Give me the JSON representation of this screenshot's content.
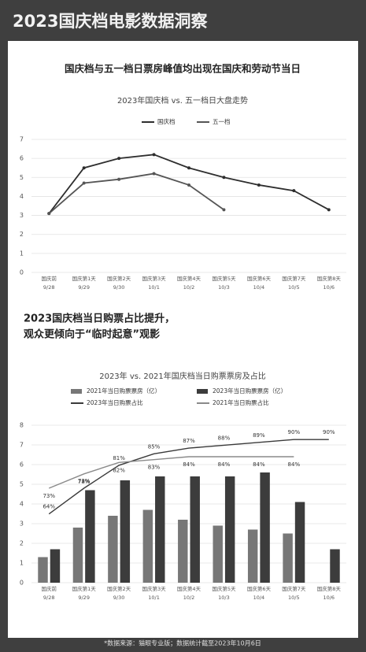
{
  "header": {
    "title": "2023国庆档电影数据洞察"
  },
  "footer": {
    "text": "*数据来源：猫眼专业版；数据统计截至2023年10月6日"
  },
  "chart_data": [
    {
      "type": "line",
      "heading": "国庆档与五一档日票房峰值均出现在国庆和劳动节当日",
      "title": "2023年国庆档 vs. 五一档日大盘走势",
      "categories": [
        [
          "国庆前",
          "9/28"
        ],
        [
          "国庆第1天",
          "9/29"
        ],
        [
          "国庆第2天",
          "9/30"
        ],
        [
          "国庆第3天",
          "10/1"
        ],
        [
          "国庆第4天",
          "10/2"
        ],
        [
          "国庆第5天",
          "10/3"
        ],
        [
          "国庆第6天",
          "10/4"
        ],
        [
          "国庆第7天",
          "10/5"
        ],
        [
          "国庆第8天",
          "10/6"
        ]
      ],
      "series": [
        {
          "name": "国庆档",
          "color": "#2e2e2e",
          "values": [
            3.1,
            5.5,
            6.0,
            6.2,
            5.5,
            5.0,
            4.6,
            4.3,
            3.3
          ]
        },
        {
          "name": "五一档",
          "color": "#555555",
          "values": [
            3.1,
            4.7,
            4.9,
            5.2,
            4.6,
            3.3,
            null,
            null,
            null
          ]
        }
      ],
      "ylim": [
        0,
        7
      ],
      "yticks": [
        0,
        1,
        2,
        3,
        4,
        5,
        6,
        7
      ],
      "grid": true
    },
    {
      "type": "combo",
      "heading": [
        "2023国庆档当日购票占比提升，",
        "观众更倾向于“临时起意”观影"
      ],
      "title": "2023年 vs. 2021年国庆档当日购票票房及占比",
      "categories": [
        [
          "国庆前",
          "9/28"
        ],
        [
          "国庆第1天",
          "9/29"
        ],
        [
          "国庆第2天",
          "9/30"
        ],
        [
          "国庆第3天",
          "10/1"
        ],
        [
          "国庆第4天",
          "10/2"
        ],
        [
          "国庆第5天",
          "10/3"
        ],
        [
          "国庆第6天",
          "10/4"
        ],
        [
          "国庆第7天",
          "10/5"
        ],
        [
          "国庆第8天",
          "10/6"
        ]
      ],
      "series": [
        {
          "name": "2021年当日购票票房（亿）",
          "type": "bar",
          "color": "#777777",
          "values": [
            1.3,
            2.8,
            3.4,
            3.7,
            3.2,
            2.9,
            2.7,
            2.5,
            null
          ]
        },
        {
          "name": "2023年当日购票票房（亿）",
          "type": "bar",
          "color": "#3c3c3c",
          "values": [
            1.7,
            4.7,
            5.2,
            5.4,
            5.4,
            5.4,
            5.6,
            4.1,
            1.7
          ]
        },
        {
          "name": "2023年当日购票占比",
          "type": "line",
          "axis": "y2",
          "color": "#3a3a3a",
          "values": [
            64,
            73,
            81,
            85,
            87,
            88,
            89,
            90,
            90
          ],
          "value_labels": [
            "64%",
            "73%",
            "81%",
            "85%",
            "87%",
            "88%",
            "89%",
            "90%",
            "90%"
          ]
        },
        {
          "name": "2021年当日购票占比",
          "type": "line",
          "axis": "y2",
          "color": "#8a8a8a",
          "values": [
            73,
            78,
            82,
            83,
            84,
            84,
            84,
            84,
            null
          ],
          "value_labels": [
            "73%",
            "78%",
            "82%",
            "83%",
            "84%",
            "84%",
            "84%",
            "84%",
            null
          ]
        }
      ],
      "ylim": [
        0,
        8
      ],
      "yticks": [
        0,
        1,
        2,
        3,
        4,
        5,
        6,
        7,
        8
      ],
      "y2lim": [
        40,
        95
      ],
      "grid": true
    }
  ]
}
